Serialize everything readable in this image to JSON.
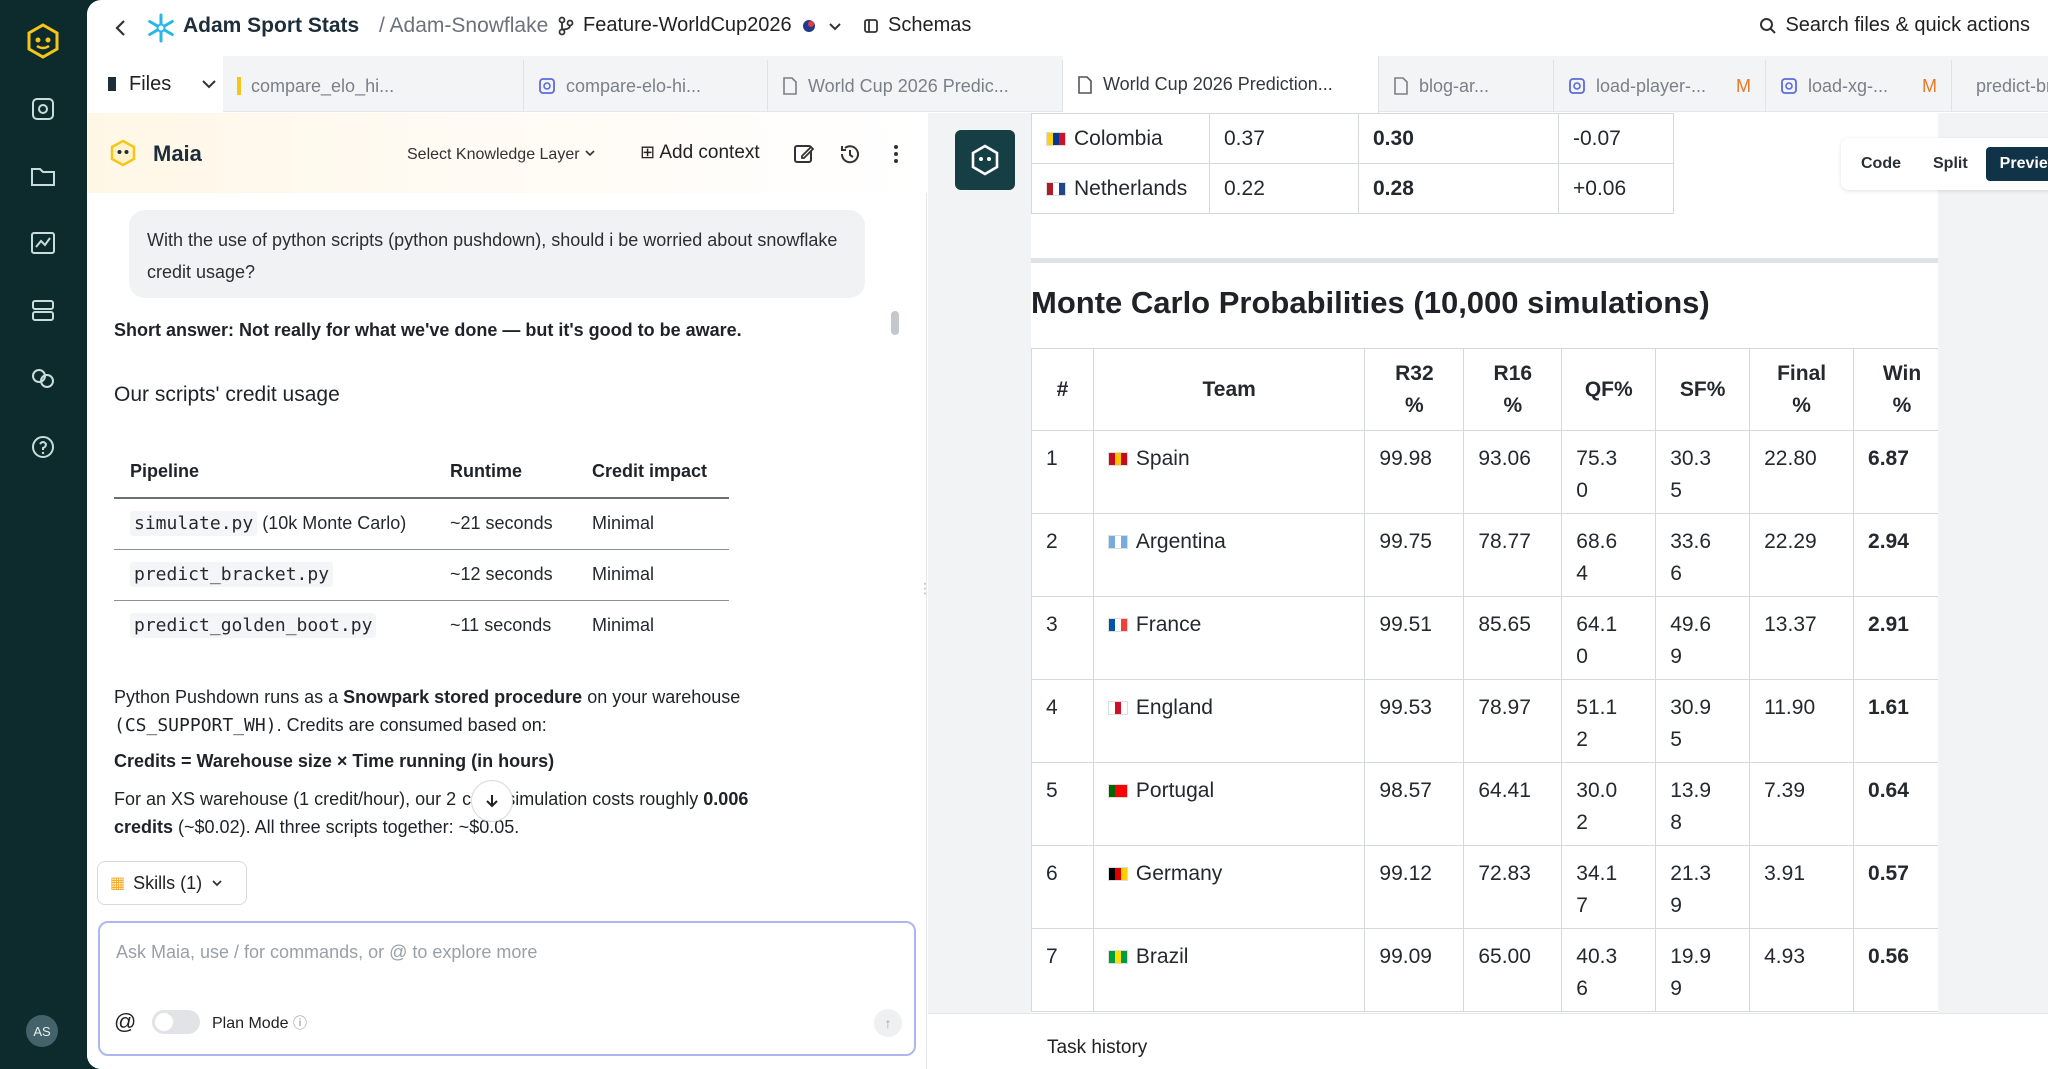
{
  "header": {
    "org": "Adam Sport Stats",
    "separator": "/",
    "project": "Adam-Snowflake",
    "branch": "Feature-WorldCup2026",
    "schemas": "Schemas",
    "search": "Search files & quick actions"
  },
  "tabs": {
    "files": "Files",
    "items": [
      {
        "label": "compare_elo_hi...",
        "modified": ""
      },
      {
        "label": "compare-elo-hi...",
        "modified": ""
      },
      {
        "label": "World Cup 2026 Predic...",
        "modified": ""
      },
      {
        "label": "World Cup 2026 Prediction...",
        "modified": "",
        "active": true
      },
      {
        "label": "blog-ar...",
        "modified": ""
      },
      {
        "label": "load-player-...",
        "modified": "M"
      },
      {
        "label": "load-xg-...",
        "modified": "M"
      },
      {
        "label": "predict-bra...",
        "modified": ""
      }
    ]
  },
  "chat": {
    "title": "Maia",
    "knowledge_layer": "Select Knowledge Layer",
    "add_context": "Add context",
    "user_message": "With the use of python scripts (python pushdown), should i be worried about snowflake credit usage?",
    "short_answer": "Short answer: Not really for what we've done — but it's good to be aware.",
    "section_heading": "Our scripts' credit usage",
    "table": {
      "headers": [
        "Pipeline",
        "Runtime",
        "Credit impact"
      ],
      "rows": [
        {
          "code": "simulate.py",
          "extra": " (10k Monte Carlo)",
          "runtime": "~21 seconds",
          "impact": "Minimal"
        },
        {
          "code": "predict_bracket.py",
          "extra": "",
          "runtime": "~12 seconds",
          "impact": "Minimal"
        },
        {
          "code": "predict_golden_boot.py",
          "extra": "",
          "runtime": "~11 seconds",
          "impact": "Minimal"
        }
      ]
    },
    "para1_a": "Python Pushdown runs as a ",
    "para1_b": "Snowpark stored procedure",
    "para1_c": " on your warehouse",
    "para1_code": "(CS_SUPPORT_WH)",
    "para1_d": ". Credits are consumed based on:",
    "formula": "Credits = Warehouse size × Time running (in hours)",
    "para2_a": "For an XS warehouse (1 credit/hour), our 2",
    "para2_b": "cond simulation costs roughly ",
    "para2_c": "0.006",
    "para2_d": "credits",
    "para2_e": " (~$0.02). All three scripts together: ~$0.05.",
    "skills": "Skills (1)",
    "input_placeholder": "Ask Maia, use / for commands, or @ to explore more",
    "plan_mode": "Plan Mode"
  },
  "preview": {
    "view_modes": [
      "Code",
      "Split",
      "Preview"
    ],
    "active_view": "Preview",
    "top_rows": [
      {
        "team": "Colombia",
        "a": "0.37",
        "b": "0.30",
        "c": "-0.07",
        "flag": [
          "#fcd116",
          "#003893",
          "#ce1126"
        ]
      },
      {
        "team": "Netherlands",
        "a": "0.22",
        "b": "0.28",
        "c": "+0.06",
        "flag": [
          "#ae1c28",
          "#ffffff",
          "#21468b"
        ]
      }
    ],
    "mc_title": "Monte Carlo Probabilities (10,000 simulations)",
    "mc_headers": [
      "#",
      "Team",
      "R32\n%",
      "R16\n%",
      "QF%",
      "SF%",
      "Final\n%",
      "Win\n%"
    ],
    "mc_rows": [
      {
        "rank": "1",
        "team": "Spain",
        "r32": "99.98",
        "r16": "93.06",
        "qf": "75.3\n0",
        "sf": "30.3\n5",
        "final": "22.80",
        "win": "6.87",
        "flag": [
          "#c60b1e",
          "#ffc400",
          "#c60b1e"
        ]
      },
      {
        "rank": "2",
        "team": "Argentina",
        "r32": "99.75",
        "r16": "78.77",
        "qf": "68.6\n4",
        "sf": "33.6\n6",
        "final": "22.29",
        "win": "2.94",
        "flag": [
          "#74acdf",
          "#ffffff",
          "#74acdf"
        ]
      },
      {
        "rank": "3",
        "team": "France",
        "r32": "99.51",
        "r16": "85.65",
        "qf": "64.1\n0",
        "sf": "49.6\n9",
        "final": "13.37",
        "win": "2.91",
        "flag": [
          "#0055a4",
          "#ffffff",
          "#ef4135"
        ]
      },
      {
        "rank": "4",
        "team": "England",
        "r32": "99.53",
        "r16": "78.97",
        "qf": "51.1\n2",
        "sf": "30.9\n5",
        "final": "11.90",
        "win": "1.61",
        "flag": [
          "#ffffff",
          "#ce1124",
          "#ffffff"
        ]
      },
      {
        "rank": "5",
        "team": "Portugal",
        "r32": "98.57",
        "r16": "64.41",
        "qf": "30.0\n2",
        "sf": "13.9\n8",
        "final": "7.39",
        "win": "0.64",
        "flag": [
          "#006600",
          "#ff0000",
          "#ff0000"
        ]
      },
      {
        "rank": "6",
        "team": "Germany",
        "r32": "99.12",
        "r16": "72.83",
        "qf": "34.1\n7",
        "sf": "21.3\n9",
        "final": "3.91",
        "win": "0.57",
        "flag": [
          "#000000",
          "#dd0000",
          "#ffce00"
        ]
      },
      {
        "rank": "7",
        "team": "Brazil",
        "r32": "99.09",
        "r16": "65.00",
        "qf": "40.3\n6",
        "sf": "19.9\n9",
        "final": "4.93",
        "win": "0.56",
        "flag": [
          "#009c3b",
          "#ffdf00",
          "#009c3b"
        ]
      }
    ],
    "task_history": "Task history"
  },
  "user": {
    "initials": "AS"
  },
  "colors": {
    "accent": "#103347",
    "rail": "#0d2b2d",
    "modified": "#e47a2c",
    "logo_yellow": "#f5c518"
  }
}
